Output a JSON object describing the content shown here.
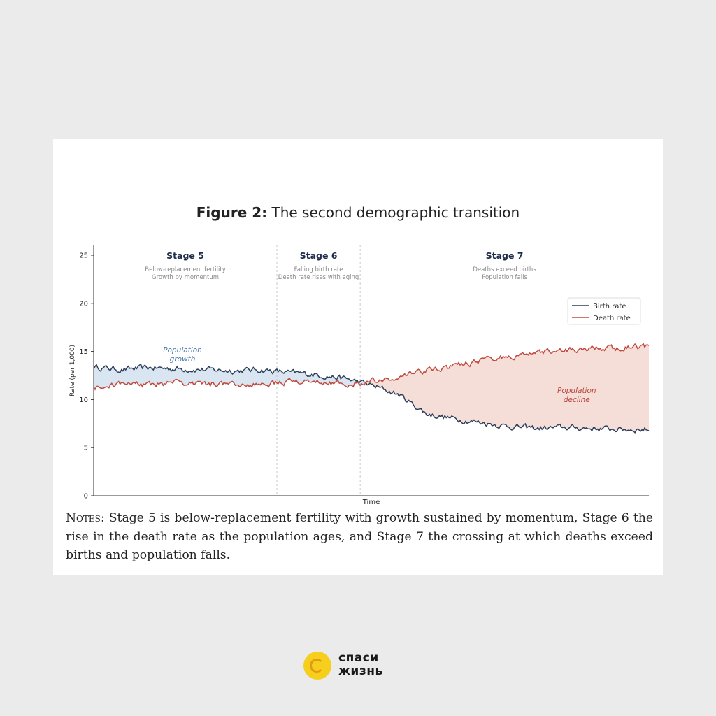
{
  "figure": {
    "label": "Figure 2:",
    "title": "The second demographic transition"
  },
  "chart_data": {
    "type": "line",
    "xlabel": "Time",
    "ylabel": "Rate (per 1,000)",
    "ylim": [
      0,
      26
    ],
    "yticks": [
      0,
      5,
      10,
      15,
      20,
      25
    ],
    "xlim": [
      0,
      100
    ],
    "legend_position": "right, upper-middle",
    "stages": [
      {
        "title": "Stage 5",
        "lines": [
          "Below-replacement fertility",
          "Growth by momentum"
        ],
        "x_start": 0,
        "x_end": 33
      },
      {
        "title": "Stage 6",
        "lines": [
          "Falling birth rate",
          "Death rate rises with aging"
        ],
        "x_start": 33,
        "x_end": 48
      },
      {
        "title": "Stage 7",
        "lines": [
          "Deaths exceed births",
          "Population falls"
        ],
        "x_start": 48,
        "x_end": 100
      }
    ],
    "series": [
      {
        "name": "Birth rate",
        "color": "#2c3e5a",
        "x": [
          0,
          5,
          10,
          15,
          20,
          25,
          30,
          35,
          40,
          45,
          48,
          50,
          55,
          60,
          65,
          70,
          75,
          80,
          85,
          90,
          95,
          100
        ],
        "values": [
          13.4,
          13.1,
          13.3,
          13.2,
          13.1,
          13.0,
          13.1,
          12.8,
          12.6,
          12.2,
          11.8,
          11.5,
          10.5,
          8.5,
          8.0,
          7.6,
          7.2,
          7.0,
          7.1,
          7.0,
          6.9,
          6.9
        ]
      },
      {
        "name": "Death rate",
        "color": "#c0493e",
        "x": [
          0,
          5,
          10,
          15,
          20,
          25,
          30,
          35,
          40,
          45,
          48,
          50,
          55,
          60,
          65,
          70,
          75,
          80,
          85,
          90,
          95,
          100
        ],
        "values": [
          11.2,
          11.6,
          11.5,
          11.8,
          11.6,
          11.6,
          11.5,
          11.8,
          11.9,
          11.5,
          11.7,
          11.9,
          12.5,
          13.0,
          13.5,
          14.0,
          14.5,
          15.0,
          15.2,
          15.3,
          15.4,
          15.5
        ]
      }
    ],
    "annotations": [
      {
        "text": "Population growth",
        "lines": [
          "Population",
          "growth"
        ],
        "color": "#4a78a8"
      },
      {
        "text": "Population decline",
        "lines": [
          "Population",
          "decline"
        ],
        "color": "#b8473d"
      }
    ]
  },
  "notes": {
    "lead": "Notes:",
    "body": " Stage 5 is below-replacement fertility with growth sustained by momentum, Stage 6 the rise in the death rate as the population ages, and Stage 7 the crossing at which deaths exceed births and population falls."
  },
  "logo": {
    "line1": "спаси",
    "line2": "жизнь",
    "colors": {
      "mark": "#f5cf1c",
      "accent": "#e39b16"
    }
  }
}
